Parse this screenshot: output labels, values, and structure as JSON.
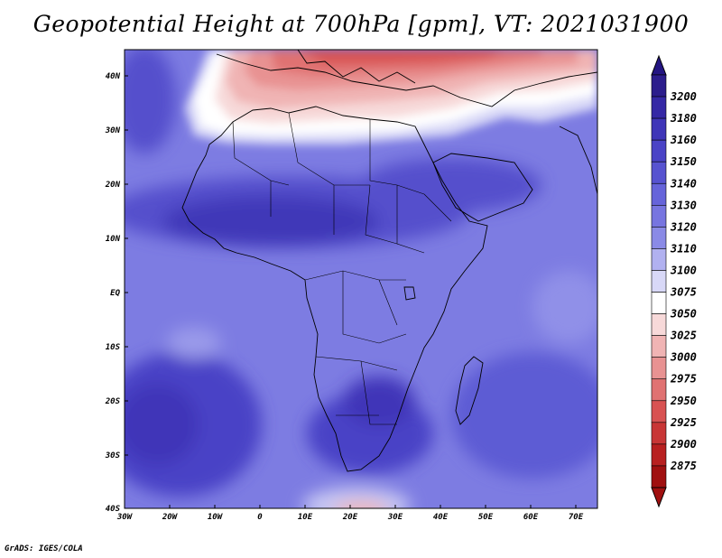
{
  "title": "Geopotential Height at 700hPa [gpm], VT: 2021031900",
  "footer": "GrADS: IGES/COLA",
  "map": {
    "region": "Africa",
    "lat_range": [
      -40,
      45
    ],
    "lon_range": [
      -30,
      75
    ],
    "lat_ticks": [
      "40N",
      "30N",
      "20N",
      "10N",
      "EQ",
      "10S",
      "20S",
      "30S",
      "40S"
    ],
    "lon_ticks": [
      "30W",
      "20W",
      "10W",
      "0",
      "10E",
      "20E",
      "30E",
      "40E",
      "50E",
      "60E",
      "70E"
    ],
    "border_color": "#000000"
  },
  "colorbar": {
    "levels": [
      "3200",
      "3180",
      "3160",
      "3150",
      "3140",
      "3130",
      "3120",
      "3110",
      "3100",
      "3075",
      "3050",
      "3025",
      "3000",
      "2975",
      "2950",
      "2925",
      "2900",
      "2875"
    ],
    "colors": [
      "#2c1d8c",
      "#3528a5",
      "#3f35b8",
      "#4a43c6",
      "#5753d0",
      "#6664da",
      "#7775e0",
      "#8a8ae6",
      "#b1b1f0",
      "#d8d8f7",
      "#ffffff",
      "#f7d9d9",
      "#f0b4b4",
      "#e89292",
      "#e07272",
      "#d85252",
      "#c83636",
      "#b82020",
      "#a01010"
    ],
    "top_arrow_color": "#241582",
    "bottom_arrow_color": "#a01010"
  },
  "field": {
    "description_units": "gpm",
    "patches": [
      {
        "name": "north-africa-high-gradient",
        "level": "3050"
      }
    ]
  }
}
